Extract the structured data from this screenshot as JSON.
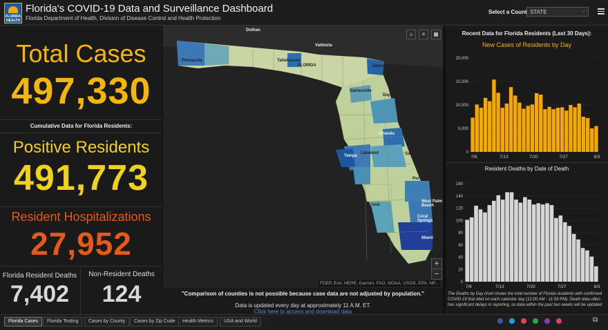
{
  "header": {
    "logo_text": "FLORIDA HEALTH",
    "title": "Florida's COVID-19 Data and Surveillance Dashboard",
    "subtitle": "Florida Department of Health, Division of Disease Control and Health Protection",
    "county_label": "Select a County",
    "county_value": "STATE"
  },
  "left": {
    "total_cases_label": "Total Cases",
    "total_cases_value": "497,330",
    "cumulative_label": "Cumulative Data for Florida Residents:",
    "positive_label": "Positive Residents",
    "positive_value": "491,773",
    "hosp_label": "Resident Hospitalizations",
    "hosp_value": "27,952",
    "deaths_label": "Florida Resident Deaths",
    "deaths_value": "7,402",
    "nonres_label": "Non-Resident Deaths",
    "nonres_value": "124"
  },
  "map": {
    "attribution": "FDEP, Esri, HERE, Garmin, FAO, NOAA, USGS, EPA, NP...",
    "zoom_in": "+",
    "zoom_out": "−",
    "cities": [
      "Dothan",
      "Valdosta",
      "Tallahassee",
      "Jacksonville",
      "Gainesville",
      "Daytona Beach",
      "Orlando",
      "Lakeland",
      "Tampa",
      "Sarasota",
      "Port St Lucie",
      "Cape Coral",
      "West Palm Beach",
      "Coral Springs",
      "Miami",
      "Pensacola",
      "FLORIDA"
    ],
    "note1": "\"Comparison of counties is not possible because case data are not adjusted by population.\"",
    "note2": "Data is updated every day at approximately 11 A.M. ET.",
    "note3": "Click here to access and download data"
  },
  "right": {
    "header": "Recent Data for Florida Residents (Last 30 Days):",
    "note": "The Deaths by Day chart shows the total number of Florida residents with confirmed COVID-19 that died on each calendar day (12:00 AM - 11:59 PM). Death data often has significant delays in reporting, so data within the past two weeks will be updated"
  },
  "chart_data": [
    {
      "type": "bar",
      "title": "New Cases of Residents by Day",
      "x_ticks": [
        "7/6",
        "7/13",
        "7/20",
        "7/27",
        "8/3"
      ],
      "y_ticks": [
        "0",
        "5,000",
        "10,000",
        "15,000",
        "20,000"
      ],
      "ylim": [
        0,
        20000
      ],
      "values": [
        7300,
        10100,
        9400,
        11500,
        10800,
        15400,
        12600,
        9400,
        10300,
        13800,
        12000,
        10500,
        9200,
        9800,
        10100,
        12500,
        12200,
        9100,
        9600,
        9100,
        9400,
        9500,
        8800,
        10000,
        9500,
        10300,
        7500,
        7200,
        5000,
        5500
      ],
      "color": "#f5a800"
    },
    {
      "type": "bar",
      "title": "Resident Deaths by Date of Death",
      "x_ticks": [
        "7/6",
        "7/13",
        "7/20",
        "7/27",
        "8/3"
      ],
      "y_ticks": [
        "0",
        "20",
        "40",
        "60",
        "80",
        "100",
        "120",
        "140",
        "160"
      ],
      "ylim": [
        0,
        160
      ],
      "values": [
        101,
        105,
        124,
        118,
        113,
        125,
        132,
        141,
        134,
        146,
        146,
        134,
        129,
        138,
        134,
        126,
        128,
        126,
        128,
        125,
        104,
        108,
        97,
        91,
        78,
        69,
        55,
        51,
        41,
        25
      ],
      "color": "#d6d6d6"
    }
  ],
  "tabs": [
    "Florida Cases",
    "Florida Testing",
    "Cases by County",
    "Cases by Zip Code",
    "Health Metrics",
    "USA and World"
  ],
  "social_colors": [
    "#3b5998",
    "#1da1f2",
    "#e4405f",
    "#2ba44f",
    "#7e3cc7",
    "#e63c6a"
  ]
}
